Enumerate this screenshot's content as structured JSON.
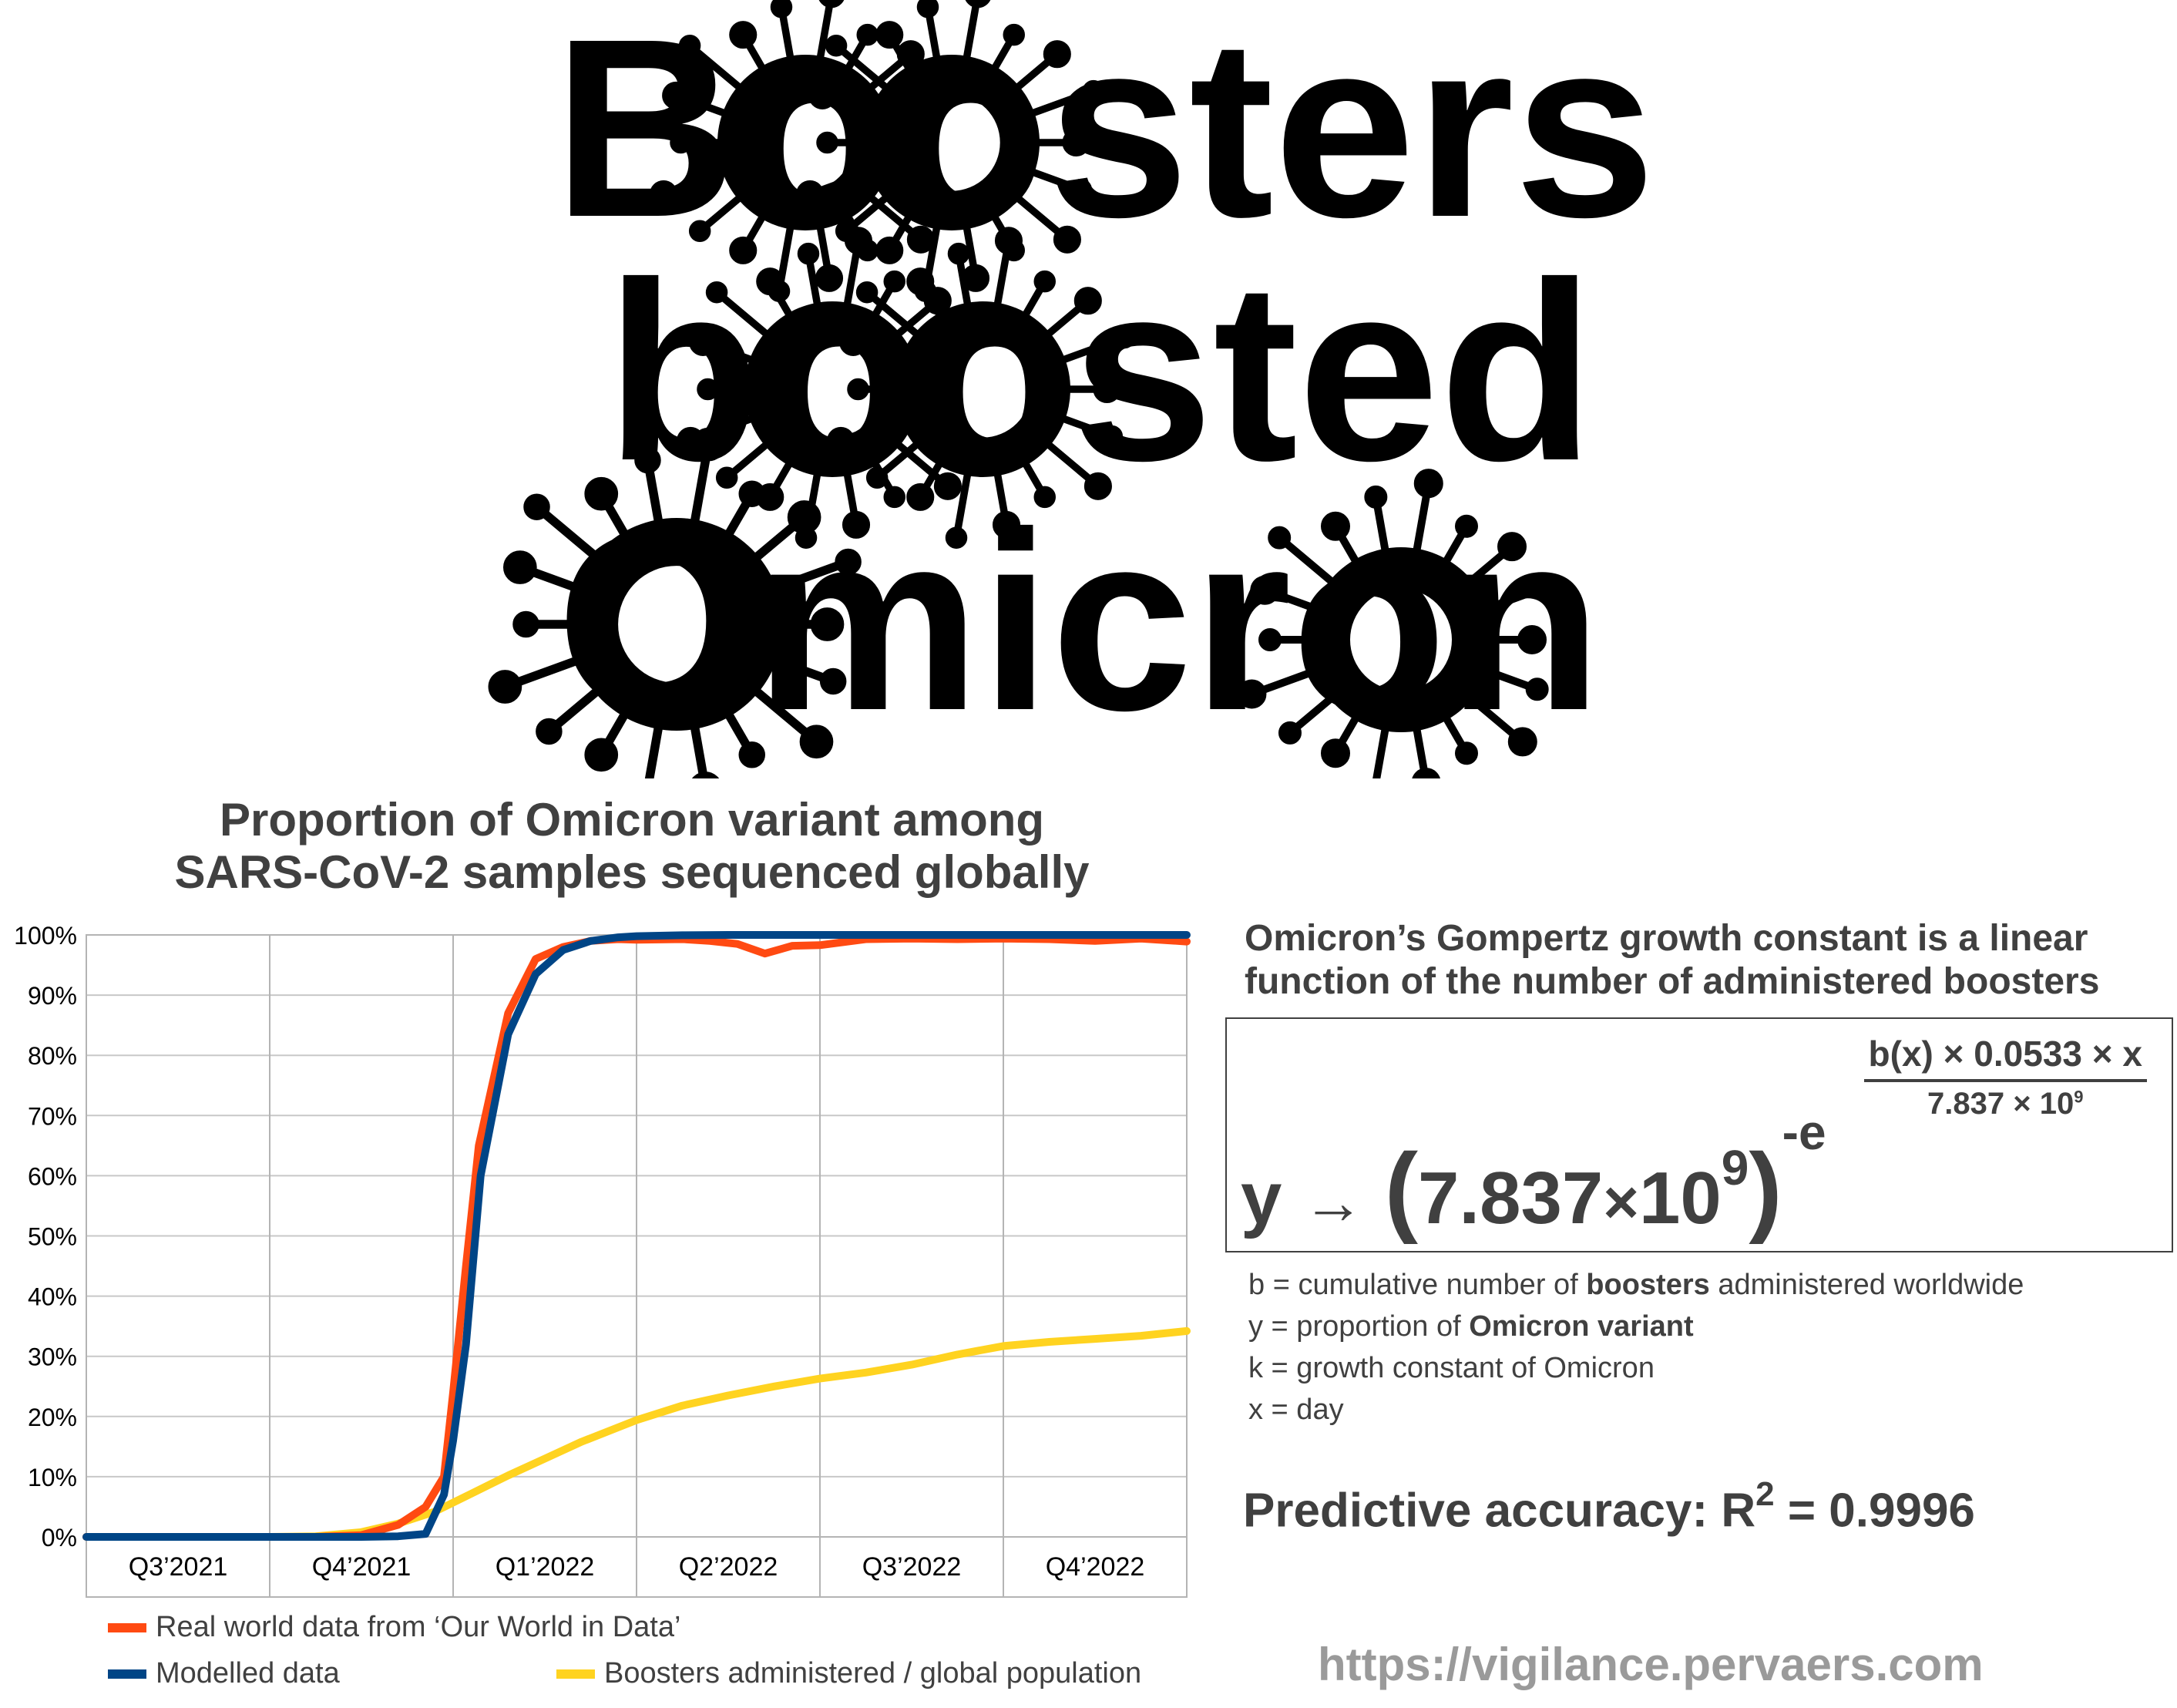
{
  "headline": {
    "line1": "Boosters",
    "line2": "boosted",
    "line3": "Omicron"
  },
  "chart_data": {
    "type": "line",
    "title": "Proportion of Omicron variant among SARS-CoV-2 samples sequenced globally",
    "title_lines": [
      "Proportion of Omicron variant among",
      "SARS-CoV-2 samples sequenced globally"
    ],
    "categories": [
      "Q3’2021",
      "Q4’2021",
      "Q1’2022",
      "Q2’2022",
      "Q3’2022",
      "Q4’2022"
    ],
    "x_range": [
      0,
      6
    ],
    "ylim": [
      0,
      100
    ],
    "y_ticks": [
      "0%",
      "10%",
      "20%",
      "30%",
      "40%",
      "50%",
      "60%",
      "70%",
      "80%",
      "90%",
      "100%"
    ],
    "grid": true,
    "legend_position": "bottom",
    "series": [
      {
        "name": "Real world data from ‘Our World in Data’",
        "color": "#ff4a12",
        "points": [
          [
            0,
            0
          ],
          [
            0.5,
            0
          ],
          [
            1,
            0
          ],
          [
            1.25,
            0
          ],
          [
            1.5,
            0.3
          ],
          [
            1.7,
            2
          ],
          [
            1.85,
            5
          ],
          [
            1.95,
            10
          ],
          [
            2.0,
            24
          ],
          [
            2.07,
            45
          ],
          [
            2.14,
            65
          ],
          [
            2.3,
            87
          ],
          [
            2.45,
            96
          ],
          [
            2.6,
            98
          ],
          [
            2.75,
            99
          ],
          [
            2.9,
            99.3
          ],
          [
            3.0,
            99.2
          ],
          [
            3.25,
            99.3
          ],
          [
            3.4,
            99.0
          ],
          [
            3.55,
            98.5
          ],
          [
            3.7,
            96.9
          ],
          [
            3.85,
            98.2
          ],
          [
            4.0,
            98.3
          ],
          [
            4.25,
            99.3
          ],
          [
            4.5,
            99.4
          ],
          [
            4.75,
            99.3
          ],
          [
            5.0,
            99.4
          ],
          [
            5.25,
            99.3
          ],
          [
            5.5,
            99.0
          ],
          [
            5.75,
            99.4
          ],
          [
            6.0,
            98.9
          ]
        ]
      },
      {
        "name": "Modelled data",
        "color": "#004586",
        "points": [
          [
            0,
            0
          ],
          [
            0.5,
            0
          ],
          [
            1,
            0
          ],
          [
            1.25,
            0
          ],
          [
            1.5,
            0
          ],
          [
            1.7,
            0.1
          ],
          [
            1.85,
            0.5
          ],
          [
            1.95,
            7
          ],
          [
            2.0,
            16
          ],
          [
            2.07,
            32
          ],
          [
            2.15,
            60
          ],
          [
            2.3,
            83.5
          ],
          [
            2.45,
            93.5
          ],
          [
            2.6,
            97.5
          ],
          [
            2.75,
            99.0
          ],
          [
            2.9,
            99.6
          ],
          [
            3.0,
            99.8
          ],
          [
            3.25,
            99.95
          ],
          [
            3.5,
            100
          ],
          [
            4.0,
            100
          ],
          [
            4.5,
            100
          ],
          [
            5.0,
            100
          ],
          [
            5.5,
            100
          ],
          [
            6.0,
            100
          ]
        ]
      },
      {
        "name": "Boosters administered / global population",
        "color": "#ffd320",
        "points": [
          [
            0,
            0
          ],
          [
            0.5,
            0
          ],
          [
            1,
            0
          ],
          [
            1.25,
            0.1
          ],
          [
            1.5,
            0.8
          ],
          [
            1.7,
            2.2
          ],
          [
            1.9,
            4.2
          ],
          [
            2.1,
            7.2
          ],
          [
            2.3,
            10.2
          ],
          [
            2.5,
            13
          ],
          [
            2.7,
            15.8
          ],
          [
            2.9,
            18.2
          ],
          [
            3.0,
            19.4
          ],
          [
            3.25,
            21.8
          ],
          [
            3.5,
            23.5
          ],
          [
            3.75,
            25
          ],
          [
            4.0,
            26.3
          ],
          [
            4.25,
            27.3
          ],
          [
            4.5,
            28.6
          ],
          [
            4.75,
            30.3
          ],
          [
            5.0,
            31.7
          ],
          [
            5.25,
            32.4
          ],
          [
            5.5,
            32.9
          ],
          [
            5.75,
            33.4
          ],
          [
            6.0,
            34.2
          ]
        ]
      }
    ]
  },
  "panel": {
    "title_line1": "Omicron’s Gompertz growth constant is a linear",
    "title_line2": "function of the number of administered boosters",
    "fraction_numerator": "b(x) × 0.0533 × x",
    "fraction_denominator_base": "7.837 × 10",
    "fraction_denominator_exp": "9",
    "formula_y": "y",
    "formula_arrow": "→",
    "formula_open": "(",
    "formula_base": "7.837",
    "formula_times": "×",
    "formula_ten": "10",
    "formula_exp": "9",
    "formula_close": ")",
    "formula_neg_e": "-e",
    "definitions": {
      "b_prefix": "b = cumulative number of ",
      "b_bold": "boosters",
      "b_suffix": " administered worldwide",
      "y_prefix": "y = proportion of ",
      "y_bold": "Omicron variant",
      "k": "k = growth constant of Omicron",
      "x": "x = day"
    },
    "accuracy_prefix": "Predictive accuracy: R",
    "accuracy_exp": "2",
    "accuracy_suffix": " = 0.9996",
    "url": "https://vigilance.pervaers.com"
  }
}
